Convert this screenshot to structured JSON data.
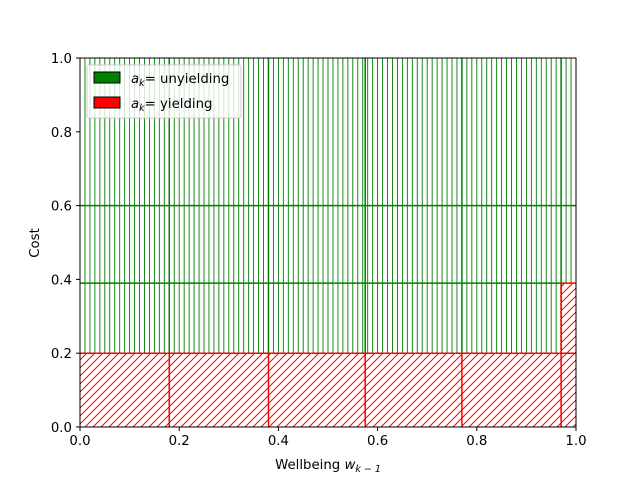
{
  "chart_data": {
    "type": "area",
    "title": "",
    "xlabel": "Wellbeing w_{k-1}",
    "ylabel": "Cost",
    "xlim": [
      0,
      1
    ],
    "ylim": [
      0,
      1
    ],
    "x_ticks": [
      "0.0",
      "0.2",
      "0.4",
      "0.6",
      "0.8",
      "1.0"
    ],
    "y_ticks": [
      "0.0",
      "0.2",
      "0.4",
      "0.6",
      "0.8",
      "1.0"
    ],
    "grid": false,
    "legend_position": "top-left",
    "cost_levels": [
      0.2,
      0.39,
      0.6,
      1.0
    ],
    "x_boundaries": [
      0.0,
      0.18,
      0.38,
      0.575,
      0.77,
      0.97,
      1.0
    ],
    "dense_grid_x_step": 0.01,
    "series": [
      {
        "name": "a_k= unyielding",
        "color": "#008000",
        "hatch": "vertical",
        "regions": [
          {
            "x": [
              0.0,
              0.97
            ],
            "y": [
              0.2,
              1.0
            ]
          },
          {
            "x": [
              0.97,
              1.0
            ],
            "y": [
              0.39,
              1.0
            ]
          }
        ]
      },
      {
        "name": "a_k= yielding",
        "color": "#ff0000",
        "hatch": "diagonal",
        "regions": [
          {
            "x": [
              0.0,
              0.97
            ],
            "y": [
              0.0,
              0.2
            ]
          },
          {
            "x": [
              0.97,
              1.0
            ],
            "y": [
              0.0,
              0.39
            ]
          }
        ]
      }
    ]
  },
  "legend": {
    "items": [
      {
        "sym": "a",
        "sub": "k",
        "text": "= unyielding",
        "color": "#008000"
      },
      {
        "sym": "a",
        "sub": "k",
        "text": "= yielding",
        "color": "#ff0000"
      }
    ]
  },
  "axes": {
    "xlabel_main": "Wellbeing ",
    "xlabel_sym": "w",
    "xlabel_sub": "k − 1",
    "ylabel": "Cost"
  }
}
